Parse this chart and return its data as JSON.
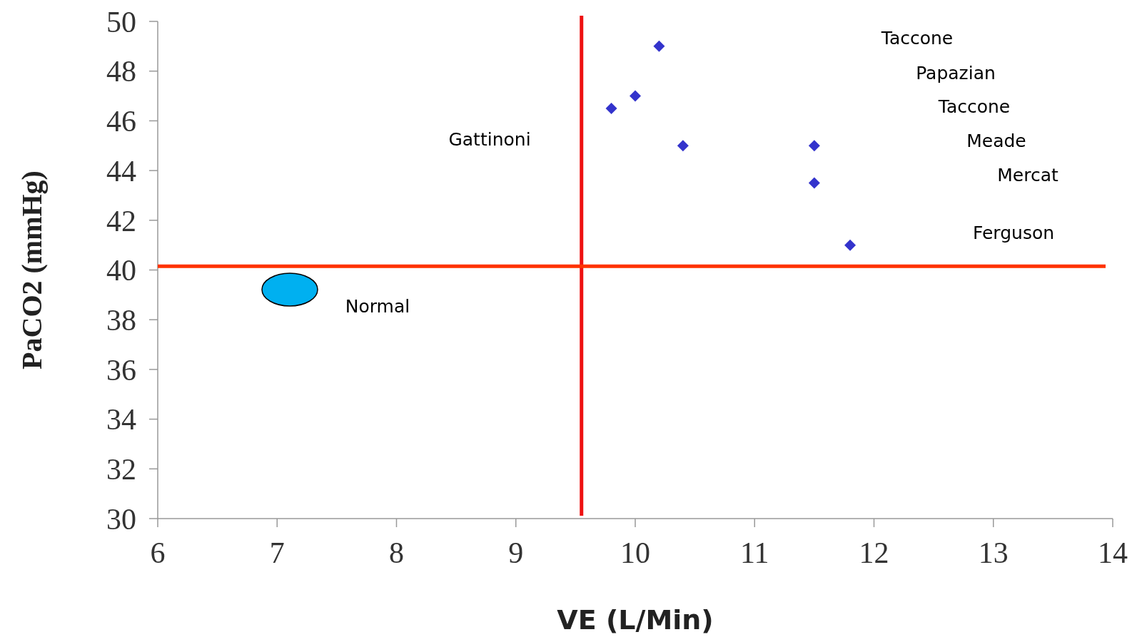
{
  "chart_data": {
    "type": "scatter",
    "xlabel": "VE (L/Min)",
    "ylabel": "PaCO2 (mmHg)",
    "xlim": [
      6,
      14
    ],
    "xticks": [
      6,
      7,
      8,
      9,
      10,
      11,
      12,
      13,
      14
    ],
    "ylim": [
      30,
      50
    ],
    "yticks": [
      30,
      32,
      34,
      36,
      38,
      40,
      42,
      44,
      46,
      48,
      50
    ],
    "grid": false,
    "series": [
      {
        "color": "#3333cc",
        "marker": "diamond",
        "x": [
          10.2,
          10.0,
          9.8,
          10.4,
          11.5,
          11.5,
          11.8
        ],
        "values": [
          49,
          47,
          46.5,
          45,
          45,
          43.5,
          41
        ]
      }
    ],
    "ref_lines": [
      {
        "axis": "x",
        "value": 9.55,
        "color": "#ee1111"
      },
      {
        "axis": "y",
        "value": 40.15,
        "color": "#ff3300"
      }
    ],
    "annotations": [
      "Taccone",
      "Papazian",
      "Taccone",
      "Meade",
      "Mercat",
      "Ferguson",
      "Gattinoni",
      "Normal"
    ]
  }
}
